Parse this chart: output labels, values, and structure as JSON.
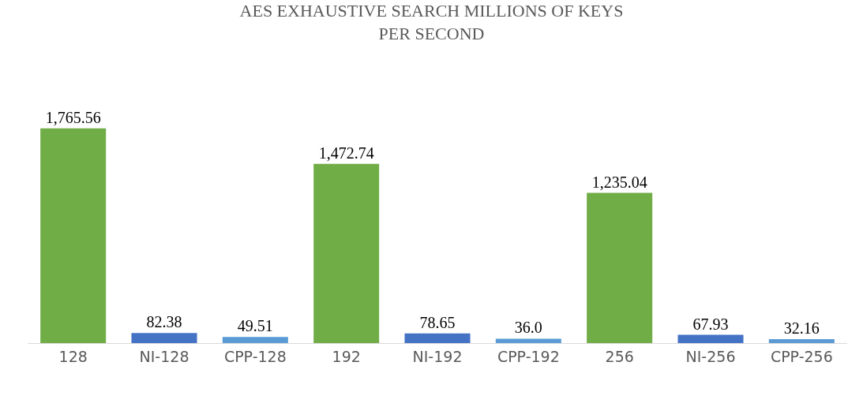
{
  "chart_data": {
    "type": "bar",
    "title": "AES EXHAUSTIVE SEARCH MILLIONS OF KEYS PER SECOND",
    "categories": [
      "128",
      "NI-128",
      "CPP-128",
      "192",
      "NI-192",
      "CPP-192",
      "256",
      "NI-256",
      "CPP-256"
    ],
    "values": [
      1765.56,
      82.38,
      49.51,
      1472.74,
      78.65,
      36.0,
      1235.04,
      67.93,
      32.16
    ],
    "value_labels": [
      "1,765.56",
      "82.38",
      "49.51",
      "1,472.74",
      "78.65",
      "36.0",
      "1,235.04",
      "67.93",
      "32.16"
    ],
    "colors": [
      "#70ad47",
      "#4472c4",
      "#5b9bd5",
      "#70ad47",
      "#4472c4",
      "#5b9bd5",
      "#70ad47",
      "#4472c4",
      "#5b9bd5"
    ],
    "legend": false
  }
}
